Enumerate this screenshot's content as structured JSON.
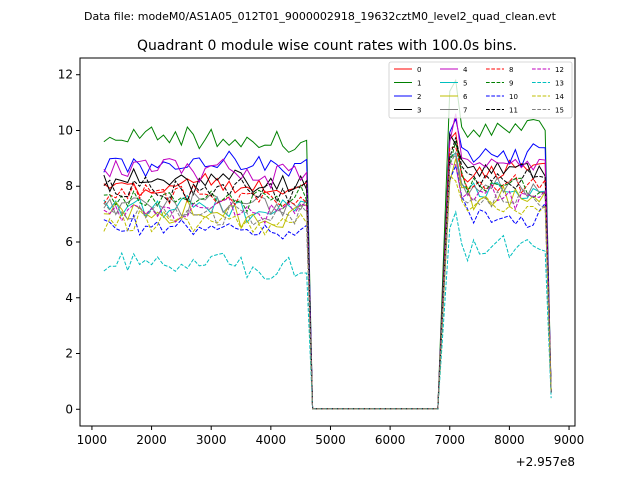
{
  "chart_data": {
    "type": "line",
    "suptitle": "Data file: modeM0/AS1A05_012T01_9000002918_19632cztM0_level2_quad_clean.evt",
    "title": "Quadrant 0 module wise count rates with 100.0s bins.",
    "xlabel": "",
    "ylabel": "",
    "x_offset_label": "+2.957e8",
    "xlim": [
      800,
      9100
    ],
    "ylim": [
      -0.6,
      12.6
    ],
    "x_ticks": [
      1000,
      2000,
      3000,
      4000,
      5000,
      6000,
      7000,
      8000,
      9000
    ],
    "x_tick_labels": [
      "1000",
      "2000",
      "3000",
      "4000",
      "5000",
      "6000",
      "7000",
      "8000",
      "9000"
    ],
    "y_ticks": [
      0,
      2,
      4,
      6,
      8,
      10,
      12
    ],
    "y_tick_labels": [
      "0",
      "2",
      "4",
      "6",
      "8",
      "10",
      "12"
    ],
    "legend": {
      "placement": "top-right",
      "columns": 4
    },
    "gaps": [
      {
        "start": 4700,
        "end": 6800
      }
    ],
    "segments": [
      {
        "start": 1200,
        "end": 4600,
        "step": 100,
        "drop_to": 4700
      },
      {
        "start": 7000,
        "end": 8600,
        "step": 100,
        "rise_from": 6800,
        "end_point": 8700
      }
    ],
    "series": [
      {
        "name": "0",
        "color": "#ff0000",
        "dash": "solid",
        "base1": 8.0,
        "base2": 8.5,
        "amp": 0.35,
        "seed": 1,
        "end_val": 0.6
      },
      {
        "name": "1",
        "color": "#008000",
        "dash": "solid",
        "base1": 9.7,
        "base2": 10.1,
        "amp": 0.35,
        "seed": 2,
        "end_val": 0.6,
        "peak2": 11.8
      },
      {
        "name": "2",
        "color": "#0000ff",
        "dash": "solid",
        "base1": 8.8,
        "base2": 9.2,
        "amp": 0.35,
        "seed": 3,
        "end_val": 0.6
      },
      {
        "name": "3",
        "color": "#000000",
        "dash": "solid",
        "base1": 8.2,
        "base2": 8.6,
        "amp": 0.35,
        "seed": 4,
        "end_val": 0.6
      },
      {
        "name": "4",
        "color": "#bf00bf",
        "dash": "solid",
        "base1": 8.6,
        "base2": 8.9,
        "amp": 0.35,
        "seed": 5,
        "end_val": 0.6
      },
      {
        "name": "5",
        "color": "#00bfbf",
        "dash": "solid",
        "base1": 7.3,
        "base2": 7.8,
        "amp": 0.35,
        "seed": 6,
        "end_val": 0.6
      },
      {
        "name": "6",
        "color": "#bfbf00",
        "dash": "solid",
        "base1": 7.0,
        "base2": 7.5,
        "amp": 0.35,
        "seed": 7,
        "end_val": 0.6
      },
      {
        "name": "7",
        "color": "#808080",
        "dash": "solid",
        "base1": 7.4,
        "base2": 7.9,
        "amp": 0.35,
        "seed": 8,
        "end_val": 0.6
      },
      {
        "name": "8",
        "color": "#ff0000",
        "dash": "dashed",
        "base1": 7.7,
        "base2": 8.1,
        "amp": 0.3,
        "seed": 9,
        "end_val": 0.6
      },
      {
        "name": "9",
        "color": "#008000",
        "dash": "dashed",
        "base1": 7.6,
        "base2": 8.0,
        "amp": 0.3,
        "seed": 10,
        "end_val": 0.6
      },
      {
        "name": "10",
        "color": "#0000ff",
        "dash": "dashed",
        "base1": 6.5,
        "base2": 7.0,
        "amp": 0.3,
        "seed": 11,
        "end_val": 0.6
      },
      {
        "name": "11",
        "color": "#000000",
        "dash": "dashed",
        "base1": 7.9,
        "base2": 8.3,
        "amp": 0.3,
        "seed": 12,
        "end_val": 0.6
      },
      {
        "name": "12",
        "color": "#bf00bf",
        "dash": "dashed",
        "base1": 7.2,
        "base2": 7.6,
        "amp": 0.3,
        "seed": 13,
        "end_val": 0.6
      },
      {
        "name": "13",
        "color": "#00bfbf",
        "dash": "dashed",
        "base1": 5.2,
        "base2": 5.8,
        "amp": 0.3,
        "seed": 14,
        "end_val": 0.4
      },
      {
        "name": "14",
        "color": "#bfbf00",
        "dash": "dashed",
        "base1": 6.8,
        "base2": 7.2,
        "amp": 0.3,
        "seed": 15,
        "end_val": 0.6
      },
      {
        "name": "15",
        "color": "#808080",
        "dash": "dashed",
        "base1": 7.0,
        "base2": 7.5,
        "amp": 0.3,
        "seed": 16,
        "end_val": 0.6
      }
    ]
  }
}
